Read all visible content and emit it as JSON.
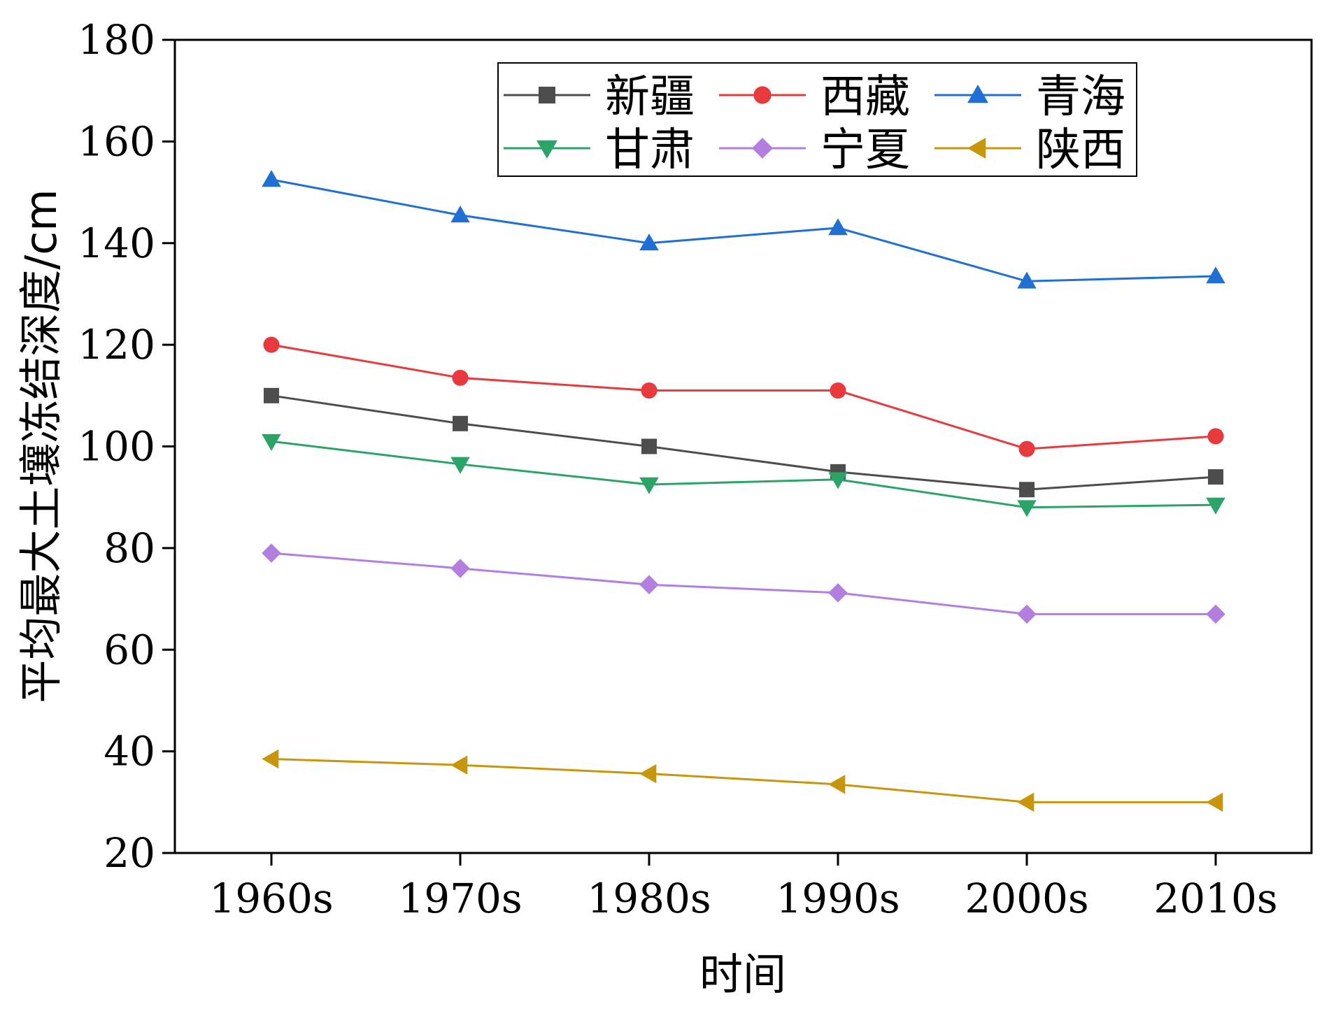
{
  "chart_data": {
    "type": "line",
    "title": "",
    "xlabel": "时间",
    "ylabel": "平均最大土壤冻结深度/cm",
    "categories": [
      "1960s",
      "1970s",
      "1980s",
      "1990s",
      "2000s",
      "2010s"
    ],
    "ylim": [
      20,
      180
    ],
    "yticks": [
      20,
      40,
      60,
      80,
      100,
      120,
      140,
      160,
      180
    ],
    "grid": false,
    "legend_position": "top-right",
    "series": [
      {
        "name": "新疆",
        "color": "#4d4d4d",
        "marker": "square",
        "values": [
          110,
          104.5,
          100,
          95,
          91.5,
          94
        ]
      },
      {
        "name": "西藏",
        "color": "#e8393d",
        "marker": "circle",
        "values": [
          120,
          113.5,
          111,
          111,
          99.5,
          102
        ]
      },
      {
        "name": "青海",
        "color": "#1f6fd4",
        "marker": "triangle-up",
        "values": [
          152.5,
          145.5,
          140,
          143,
          132.5,
          133.5
        ]
      },
      {
        "name": "甘肃",
        "color": "#2aa567",
        "marker": "triangle-down",
        "values": [
          101,
          96.5,
          92.5,
          93.5,
          88,
          88.5
        ]
      },
      {
        "name": "宁夏",
        "color": "#b37ee0",
        "marker": "diamond",
        "values": [
          79,
          76,
          72.8,
          71.2,
          67,
          67
        ]
      },
      {
        "name": "陕西",
        "color": "#c8960b",
        "marker": "triangle-left",
        "values": [
          38.5,
          37.3,
          35.6,
          33.5,
          30,
          30
        ]
      }
    ]
  }
}
